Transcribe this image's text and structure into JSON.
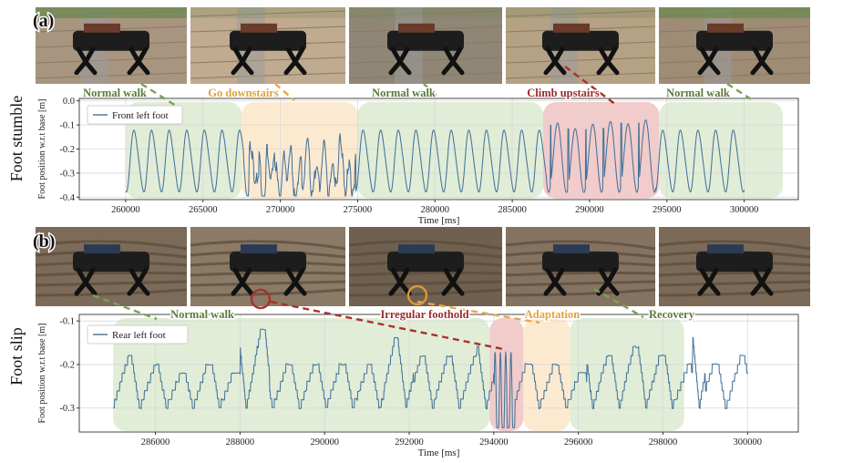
{
  "panels": [
    {
      "label": "(a)",
      "row_label": "Foot stumble"
    },
    {
      "label": "(b)",
      "row_label": "Foot slip"
    }
  ],
  "chart_data": [
    {
      "type": "line",
      "panel": "(a)",
      "xlabel": "Time [ms]",
      "ylabel": "Foot position w.r.t base [m]",
      "xlim": [
        257000,
        303500
      ],
      "ylim": [
        -0.41,
        0.01
      ],
      "xticks": [
        260000,
        265000,
        270000,
        275000,
        280000,
        285000,
        290000,
        295000,
        300000
      ],
      "yticks": [
        0.0,
        -0.1,
        -0.2,
        -0.3,
        -0.4
      ],
      "ytick_labels": [
        "0.0",
        "-0.1",
        "-0.2",
        "-0.3",
        "-0.4"
      ],
      "grid": true,
      "legend": "top-left",
      "series": [
        {
          "name": "Front left foot",
          "color": "#44739a",
          "x_range": [
            260000,
            300000
          ],
          "min": -0.39,
          "max": -0.09
        }
      ],
      "phases": [
        {
          "label": "Normal walk",
          "start": 260000,
          "end": 267500,
          "color": "#dcead0",
          "text_color": "#5b7a3a",
          "type": "normal"
        },
        {
          "label": "Go downstairs",
          "start": 267500,
          "end": 275000,
          "color": "#fbe6c8",
          "text_color": "#e1a23c",
          "type": "down"
        },
        {
          "label": "Normal walk",
          "start": 275000,
          "end": 287000,
          "color": "#dcead0",
          "text_color": "#5b7a3a",
          "type": "normal"
        },
        {
          "label": "Climb upstairs",
          "start": 287000,
          "end": 294500,
          "color": "#f0c2c2",
          "text_color": "#9c2a2a",
          "type": "up"
        },
        {
          "label": "Normal walk",
          "start": 294500,
          "end": 302500,
          "color": "#dcead0",
          "text_color": "#5b7a3a",
          "type": "normal"
        }
      ]
    },
    {
      "type": "line",
      "panel": "(b)",
      "xlabel": "Time [ms]",
      "ylabel": "Foot position w.r.t base [m]",
      "xlim": [
        284200,
        301200
      ],
      "ylim": [
        -0.355,
        -0.085
      ],
      "xticks": [
        286000,
        288000,
        290000,
        292000,
        294000,
        296000,
        298000,
        300000
      ],
      "yticks": [
        -0.1,
        -0.2,
        -0.3
      ],
      "ytick_labels": [
        "-0.1",
        "-0.2",
        "-0.3"
      ],
      "grid": true,
      "legend": "top-left",
      "series": [
        {
          "name": "Rear left foot",
          "color": "#44739a",
          "x_range": [
            285000,
            300000
          ],
          "min": -0.34,
          "max": -0.1
        }
      ],
      "phases": [
        {
          "label": "Normal walk",
          "start": 285000,
          "end": 293900,
          "color": "#dcead0",
          "text_color": "#5b7a3a",
          "type": "normal"
        },
        {
          "label": "Irregular foothold",
          "start": 293900,
          "end": 294700,
          "color": "#f0c2c2",
          "text_color": "#9c2a2a",
          "type": "irregular"
        },
        {
          "label": "Adaptation",
          "start": 294700,
          "end": 295800,
          "color": "#fbe6c8",
          "text_color": "#e1a23c",
          "type": "adapt"
        },
        {
          "label": "Recovery",
          "start": 295800,
          "end": 298500,
          "color": "#dcead0",
          "text_color": "#5b7a3a",
          "type": "normal"
        }
      ]
    }
  ],
  "photos": [
    {
      "panel": "(a)",
      "count": 5,
      "scene": "robot-stairs"
    },
    {
      "panel": "(b)",
      "count": 5,
      "scene": "robot-roots"
    }
  ]
}
